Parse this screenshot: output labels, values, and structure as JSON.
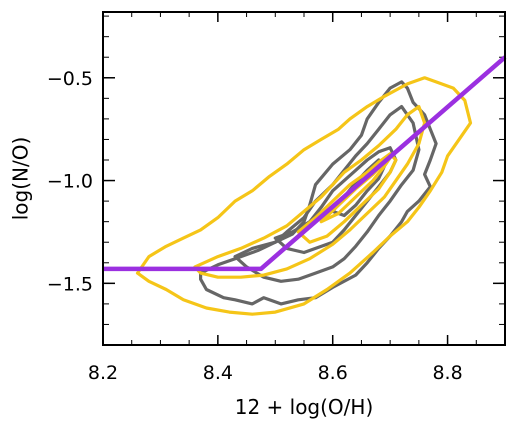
{
  "chart_data": {
    "type": "line",
    "title": "",
    "xlabel": "12 + log(O/H)",
    "ylabel": "log(N/O)",
    "xlim": [
      8.2,
      8.9
    ],
    "ylim": [
      -1.8,
      -0.18
    ],
    "xticks": [
      8.2,
      8.4,
      8.6,
      8.8
    ],
    "xtick_labels": [
      "8.2",
      "8.4",
      "8.6",
      "8.8"
    ],
    "yticks": [
      -1.5,
      -1.0,
      -0.5
    ],
    "ytick_labels": [
      "−1.5",
      "−1.0",
      "−0.5"
    ],
    "x_minor_step": 0.05,
    "y_minor_step": 0.1,
    "colors": {
      "relation": "#9b30e0",
      "grey_contours": "#666666",
      "gold_contours": "#f5c518"
    },
    "series": [
      {
        "color_key": "relation",
        "kind": "line",
        "x": [
          8.2,
          8.475,
          8.9
        ],
        "y": [
          -1.43,
          -1.43,
          -0.4
        ]
      }
    ],
    "contours": [
      {
        "color_key": "grey_contours",
        "levels": [
          {
            "x": [
              8.37,
              8.4,
              8.43,
              8.47,
              8.5,
              8.53,
              8.55,
              8.56,
              8.57,
              8.6,
              8.63,
              8.65,
              8.66,
              8.68,
              8.7,
              8.72,
              8.73,
              8.74,
              8.76,
              8.77,
              8.78,
              8.77,
              8.76,
              8.77,
              8.75,
              8.73,
              8.72,
              8.7,
              8.68,
              8.66,
              8.64,
              8.6,
              8.57,
              8.54,
              8.51,
              8.48,
              8.46,
              8.43,
              8.41,
              8.38,
              8.37,
              8.37
            ],
            "y": [
              -1.45,
              -1.41,
              -1.38,
              -1.34,
              -1.3,
              -1.26,
              -1.2,
              -1.12,
              -1.02,
              -0.92,
              -0.85,
              -0.78,
              -0.7,
              -0.62,
              -0.55,
              -0.52,
              -0.55,
              -0.62,
              -0.68,
              -0.75,
              -0.82,
              -0.9,
              -0.97,
              -1.03,
              -1.1,
              -1.15,
              -1.2,
              -1.27,
              -1.33,
              -1.4,
              -1.46,
              -1.52,
              -1.57,
              -1.58,
              -1.6,
              -1.57,
              -1.6,
              -1.58,
              -1.57,
              -1.53,
              -1.48,
              -1.45
            ]
          },
          {
            "x": [
              8.43,
              8.46,
              8.5,
              8.52,
              8.55,
              8.57,
              8.6,
              8.62,
              8.64,
              8.66,
              8.68,
              8.7,
              8.72,
              8.74,
              8.75,
              8.74,
              8.72,
              8.7,
              8.68,
              8.66,
              8.64,
              8.62,
              8.6,
              8.57,
              8.54,
              8.51,
              8.48,
              8.45,
              8.43
            ],
            "y": [
              -1.37,
              -1.33,
              -1.3,
              -1.25,
              -1.18,
              -1.1,
              -1.02,
              -0.95,
              -0.88,
              -0.82,
              -0.75,
              -0.68,
              -0.64,
              -0.72,
              -0.85,
              -0.95,
              -1.02,
              -1.1,
              -1.17,
              -1.25,
              -1.32,
              -1.38,
              -1.42,
              -1.45,
              -1.48,
              -1.49,
              -1.47,
              -1.42,
              -1.37
            ]
          },
          {
            "x": [
              8.5,
              8.53,
              8.56,
              8.58,
              8.6,
              8.62,
              8.64,
              8.66,
              8.68,
              8.7,
              8.71,
              8.7,
              8.68,
              8.66,
              8.64,
              8.62,
              8.6,
              8.57,
              8.55,
              8.52,
              8.5
            ],
            "y": [
              -1.28,
              -1.25,
              -1.2,
              -1.13,
              -1.05,
              -1.0,
              -0.95,
              -0.9,
              -0.86,
              -0.84,
              -0.9,
              -0.96,
              -1.03,
              -1.1,
              -1.17,
              -1.24,
              -1.3,
              -1.33,
              -1.35,
              -1.33,
              -1.28
            ]
          },
          {
            "x": [
              8.6,
              8.62,
              8.64,
              8.66,
              8.68,
              8.69,
              8.68,
              8.66,
              8.64,
              8.62,
              8.6
            ],
            "y": [
              -1.15,
              -1.08,
              -1.01,
              -0.95,
              -0.9,
              -0.93,
              -0.99,
              -1.05,
              -1.12,
              -1.17,
              -1.15
            ]
          }
        ]
      },
      {
        "color_key": "gold_contours",
        "levels": [
          {
            "x": [
              8.26,
              8.28,
              8.31,
              8.34,
              8.37,
              8.4,
              8.43,
              8.46,
              8.49,
              8.52,
              8.55,
              8.58,
              8.61,
              8.63,
              8.66,
              8.69,
              8.71,
              8.73,
              8.76,
              8.78,
              8.81,
              8.83,
              8.84,
              8.82,
              8.8,
              8.79,
              8.77,
              8.75,
              8.73,
              8.7,
              8.67,
              8.63,
              8.59,
              8.55,
              8.5,
              8.46,
              8.42,
              8.38,
              8.34,
              8.31,
              8.28,
              8.26
            ],
            "y": [
              -1.45,
              -1.37,
              -1.32,
              -1.28,
              -1.24,
              -1.18,
              -1.1,
              -1.05,
              -0.98,
              -0.92,
              -0.85,
              -0.8,
              -0.75,
              -0.7,
              -0.64,
              -0.59,
              -0.56,
              -0.53,
              -0.5,
              -0.52,
              -0.55,
              -0.61,
              -0.72,
              -0.8,
              -0.88,
              -0.96,
              -1.05,
              -1.13,
              -1.2,
              -1.27,
              -1.35,
              -1.45,
              -1.53,
              -1.6,
              -1.64,
              -1.65,
              -1.64,
              -1.62,
              -1.58,
              -1.53,
              -1.49,
              -1.45
            ]
          },
          {
            "x": [
              8.36,
              8.4,
              8.44,
              8.48,
              8.52,
              8.55,
              8.58,
              8.6,
              8.62,
              8.65,
              8.68,
              8.71,
              8.73,
              8.75,
              8.76,
              8.75,
              8.73,
              8.71,
              8.69,
              8.66,
              8.63,
              8.6,
              8.56,
              8.52,
              8.48,
              8.44,
              8.4,
              8.37,
              8.36
            ],
            "y": [
              -1.42,
              -1.37,
              -1.33,
              -1.28,
              -1.22,
              -1.15,
              -1.08,
              -1.02,
              -0.96,
              -0.9,
              -0.83,
              -0.75,
              -0.68,
              -0.64,
              -0.72,
              -0.82,
              -0.92,
              -1.0,
              -1.08,
              -1.16,
              -1.24,
              -1.31,
              -1.38,
              -1.43,
              -1.46,
              -1.47,
              -1.47,
              -1.45,
              -1.42
            ]
          },
          {
            "x": [
              8.54,
              8.57,
              8.6,
              8.63,
              8.66,
              8.68,
              8.7,
              8.71,
              8.7,
              8.68,
              8.65,
              8.62,
              8.59,
              8.56,
              8.54
            ],
            "y": [
              -1.25,
              -1.18,
              -1.1,
              -1.02,
              -0.96,
              -0.91,
              -0.87,
              -0.9,
              -0.96,
              -1.04,
              -1.12,
              -1.2,
              -1.27,
              -1.3,
              -1.25
            ]
          },
          {
            "x": [
              8.58,
              8.61,
              8.64,
              8.67,
              8.69,
              8.7,
              8.69,
              8.67,
              8.64,
              8.61,
              8.58
            ],
            "y": [
              -1.2,
              -1.12,
              -1.04,
              -0.97,
              -0.91,
              -0.89,
              -0.93,
              -1.0,
              -1.08,
              -1.16,
              -1.2
            ]
          }
        ]
      }
    ]
  }
}
